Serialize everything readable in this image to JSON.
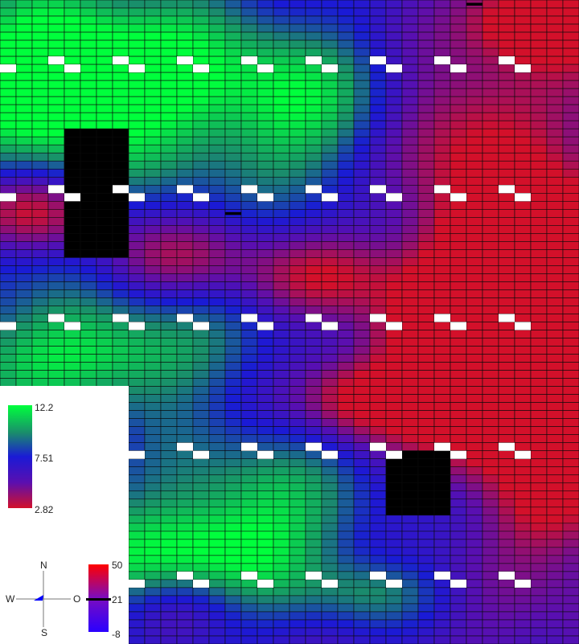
{
  "chart_data": {
    "type": "heatmap",
    "grid": {
      "cols": 36,
      "rows": 80
    },
    "value_range": [
      2.82,
      12.2
    ],
    "colors": {
      "high": "#00ff3c",
      "mid_high": "#1a8c6c",
      "mid": "#1a1ad6",
      "mid_low": "#5a0fb0",
      "low": "#d3102a",
      "missing": "#000000",
      "cell_border": "#0a0a0a"
    },
    "no_data_blocks": [
      {
        "col_range": [
          4,
          7
        ],
        "row_range": [
          16,
          31
        ]
      },
      {
        "col_range": [
          24,
          27
        ],
        "row_range": [
          56,
          63
        ]
      }
    ],
    "marked_cells": [
      {
        "col": 29,
        "row": 0
      },
      {
        "col": 14,
        "row": 26
      }
    ],
    "notches": {
      "rows": [
        8,
        24,
        40,
        56,
        72
      ],
      "cols": [
        0,
        4,
        8,
        12,
        16,
        20,
        24,
        28,
        32
      ]
    },
    "empty_region": "bottom-left"
  },
  "legend": {
    "value_scale": {
      "max_label": "12.2",
      "mid_label": "7.51",
      "min_label": "2.82"
    },
    "secondary_scale": {
      "max_label": "50",
      "mid_label": "21",
      "min_label": "-8",
      "colors": {
        "top": "#ff0000",
        "middle": "#6a10c8",
        "bottom": "#2a00ff",
        "marker": "#000000"
      }
    }
  },
  "compass": {
    "north": "N",
    "south": "S",
    "west": "W",
    "east": "O",
    "arrow_color": "#0000ff"
  }
}
